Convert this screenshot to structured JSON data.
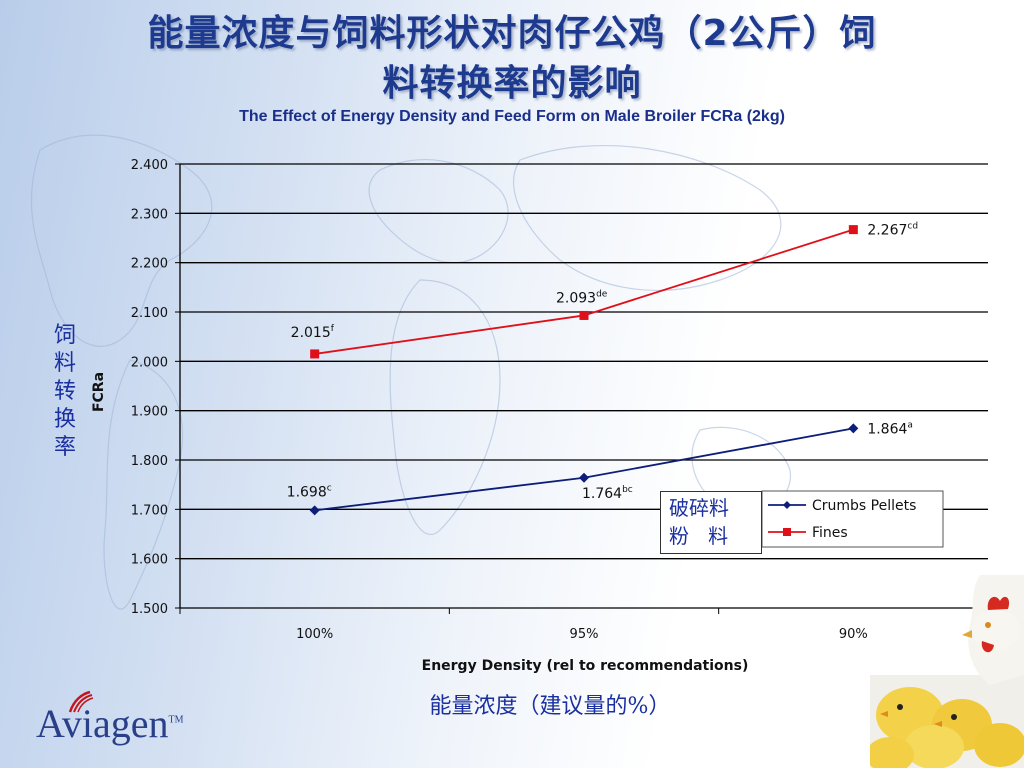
{
  "slide": {
    "title_line1": "能量浓度与饲料形状对肉仔公鸡（2公斤）饲",
    "title_line2": "料转换率的影响",
    "subtitle": "The Effect of Energy Density and Feed Form on Male Broiler FCRa (2kg)",
    "ylabel_cn": [
      "饲",
      "料",
      "转",
      "换",
      "率"
    ],
    "xlabel_cn": "能量浓度（建议量的%）",
    "legend_cn": [
      "破碎料",
      "粉   料"
    ],
    "logo_text": "Aviagen",
    "logo_tm": "TM"
  },
  "chart_data": {
    "type": "line",
    "title": "",
    "xlabel": "Energy Density (rel to recommendations)",
    "ylabel": "FCRa",
    "categories": [
      "100%",
      "95%",
      "90%"
    ],
    "ylim": [
      1.5,
      2.4
    ],
    "yticks": [
      "1.500",
      "1.600",
      "1.700",
      "1.800",
      "1.900",
      "2.000",
      "2.100",
      "2.200",
      "2.300",
      "2.400"
    ],
    "grid": true,
    "legend_position": "bottom-right",
    "series": [
      {
        "name": "Crumbs Pellets",
        "color": "#0d1e7a",
        "marker": "diamond",
        "values": [
          1.698,
          1.764,
          1.864
        ],
        "labels": [
          "1.698",
          "1.764",
          "1.864"
        ],
        "superscripts": [
          "c",
          "bc",
          "a"
        ]
      },
      {
        "name": "Fines",
        "color": "#e0101a",
        "marker": "square",
        "values": [
          2.015,
          2.093,
          2.267
        ],
        "labels": [
          "2.015",
          "2.093",
          "2.267"
        ],
        "superscripts": [
          "f",
          "de",
          "cd"
        ]
      }
    ]
  }
}
